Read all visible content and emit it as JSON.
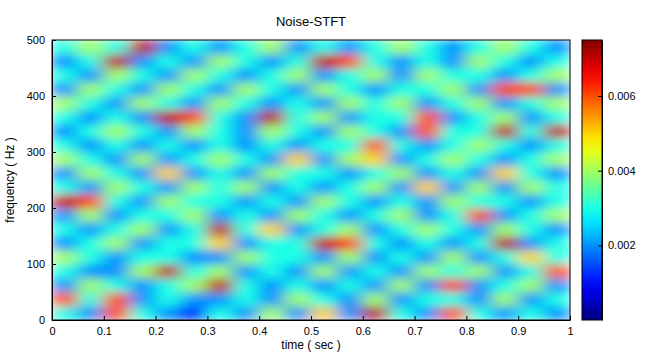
{
  "chart_data": {
    "type": "heatmap",
    "title": "Noise-STFT",
    "x_label": "time ( sec )",
    "y_label": "frequency ( Hz )",
    "x": [
      0.025,
      0.075,
      0.125,
      0.175,
      0.225,
      0.275,
      0.325,
      0.375,
      0.425,
      0.475,
      0.525,
      0.575,
      0.625,
      0.675,
      0.725,
      0.775,
      0.825,
      0.875,
      0.925,
      0.975
    ],
    "y": [
      12.5,
      37.5,
      62.5,
      87.5,
      112.5,
      137.5,
      162.5,
      187.5,
      212.5,
      237.5,
      262.5,
      287.5,
      312.5,
      337.5,
      362.5,
      387.5,
      412.5,
      437.5,
      462.5,
      487.5
    ],
    "cells": [
      [
        0.003,
        0.002,
        0.006,
        0.003,
        0.002,
        0.001,
        0.003,
        0.002,
        0.004,
        0.002,
        0.005,
        0.002,
        0.007,
        0.003,
        0.002,
        0.006,
        0.003,
        0.002,
        0.003,
        0.002
      ],
      [
        0.006,
        0.003,
        0.006,
        0.002,
        0.003,
        0.002,
        0.002,
        0.003,
        0.002,
        0.004,
        0.003,
        0.002,
        0.004,
        0.002,
        0.003,
        0.003,
        0.002,
        0.004,
        0.002,
        0.003
      ],
      [
        0.002,
        0.004,
        0.003,
        0.002,
        0.003,
        0.004,
        0.007,
        0.003,
        0.002,
        0.003,
        0.002,
        0.003,
        0.002,
        0.004,
        0.002,
        0.006,
        0.002,
        0.003,
        0.004,
        0.002
      ],
      [
        0.003,
        0.002,
        0.002,
        0.004,
        0.007,
        0.003,
        0.004,
        0.002,
        0.003,
        0.002,
        0.004,
        0.002,
        0.003,
        0.002,
        0.004,
        0.003,
        0.004,
        0.002,
        0.003,
        0.006
      ],
      [
        0.004,
        0.003,
        0.002,
        0.003,
        0.003,
        0.002,
        0.002,
        0.004,
        0.003,
        0.003,
        0.002,
        0.004,
        0.002,
        0.003,
        0.002,
        0.004,
        0.002,
        0.003,
        0.005,
        0.003
      ],
      [
        0.002,
        0.003,
        0.004,
        0.002,
        0.003,
        0.003,
        0.005,
        0.002,
        0.003,
        0.003,
        0.007,
        0.006,
        0.003,
        0.002,
        0.003,
        0.002,
        0.003,
        0.007,
        0.002,
        0.003
      ],
      [
        0.003,
        0.002,
        0.003,
        0.004,
        0.002,
        0.003,
        0.007,
        0.003,
        0.005,
        0.002,
        0.003,
        0.004,
        0.002,
        0.003,
        0.004,
        0.003,
        0.002,
        0.004,
        0.003,
        0.002
      ],
      [
        0.002,
        0.004,
        0.002,
        0.003,
        0.003,
        0.004,
        0.002,
        0.003,
        0.002,
        0.004,
        0.003,
        0.002,
        0.003,
        0.004,
        0.002,
        0.003,
        0.006,
        0.002,
        0.003,
        0.004
      ],
      [
        0.007,
        0.006,
        0.003,
        0.002,
        0.004,
        0.003,
        0.003,
        0.002,
        0.003,
        0.002,
        0.004,
        0.003,
        0.002,
        0.003,
        0.002,
        0.004,
        0.003,
        0.003,
        0.002,
        0.003
      ],
      [
        0.003,
        0.002,
        0.004,
        0.003,
        0.002,
        0.004,
        0.003,
        0.004,
        0.002,
        0.003,
        0.002,
        0.003,
        0.004,
        0.002,
        0.005,
        0.002,
        0.004,
        0.002,
        0.004,
        0.003
      ],
      [
        0.002,
        0.004,
        0.003,
        0.002,
        0.005,
        0.002,
        0.003,
        0.002,
        0.004,
        0.003,
        0.003,
        0.002,
        0.003,
        0.004,
        0.002,
        0.003,
        0.002,
        0.005,
        0.003,
        0.002
      ],
      [
        0.004,
        0.003,
        0.002,
        0.004,
        0.002,
        0.003,
        0.004,
        0.003,
        0.002,
        0.005,
        0.002,
        0.004,
        0.005,
        0.002,
        0.003,
        0.004,
        0.003,
        0.002,
        0.003,
        0.004
      ],
      [
        0.003,
        0.002,
        0.003,
        0.002,
        0.003,
        0.002,
        0.003,
        0.002,
        0.003,
        0.002,
        0.003,
        0.003,
        0.006,
        0.003,
        0.002,
        0.003,
        0.004,
        0.003,
        0.002,
        0.003
      ],
      [
        0.002,
        0.003,
        0.004,
        0.003,
        0.002,
        0.004,
        0.003,
        0.002,
        0.004,
        0.003,
        0.002,
        0.004,
        0.003,
        0.002,
        0.006,
        0.003,
        0.003,
        0.007,
        0.003,
        0.007
      ],
      [
        0.003,
        0.002,
        0.003,
        0.002,
        0.007,
        0.006,
        0.003,
        0.002,
        0.007,
        0.003,
        0.004,
        0.002,
        0.003,
        0.003,
        0.006,
        0.002,
        0.003,
        0.004,
        0.002,
        0.003
      ],
      [
        0.004,
        0.003,
        0.002,
        0.004,
        0.003,
        0.002,
        0.004,
        0.003,
        0.002,
        0.003,
        0.002,
        0.004,
        0.003,
        0.004,
        0.002,
        0.003,
        0.004,
        0.002,
        0.003,
        0.004
      ],
      [
        0.002,
        0.004,
        0.003,
        0.002,
        0.004,
        0.003,
        0.002,
        0.004,
        0.003,
        0.002,
        0.004,
        0.003,
        0.002,
        0.003,
        0.003,
        0.004,
        0.002,
        0.006,
        0.006,
        0.002
      ],
      [
        0.003,
        0.002,
        0.004,
        0.003,
        0.002,
        0.004,
        0.003,
        0.002,
        0.003,
        0.004,
        0.002,
        0.003,
        0.004,
        0.002,
        0.004,
        0.003,
        0.003,
        0.002,
        0.003,
        0.004
      ],
      [
        0.002,
        0.003,
        0.007,
        0.002,
        0.003,
        0.002,
        0.004,
        0.003,
        0.002,
        0.003,
        0.007,
        0.006,
        0.003,
        0.002,
        0.003,
        0.002,
        0.004,
        0.003,
        0.002,
        0.003
      ],
      [
        0.003,
        0.004,
        0.003,
        0.007,
        0.002,
        0.003,
        0.002,
        0.003,
        0.004,
        0.002,
        0.003,
        0.002,
        0.003,
        0.004,
        0.003,
        0.002,
        0.003,
        0.004,
        0.003,
        0.002
      ]
    ],
    "xlim": [
      0,
      1
    ],
    "ylim": [
      0,
      500
    ],
    "xticks": [
      0,
      0.1,
      0.2,
      0.3,
      0.4,
      0.5,
      0.6,
      0.7,
      0.8,
      0.9,
      1
    ],
    "yticks": [
      0,
      100,
      200,
      300,
      400,
      500
    ],
    "colorbar_range": [
      0,
      0.0075
    ],
    "colorbar_ticks": [
      0.002,
      0.004,
      0.006
    ]
  }
}
